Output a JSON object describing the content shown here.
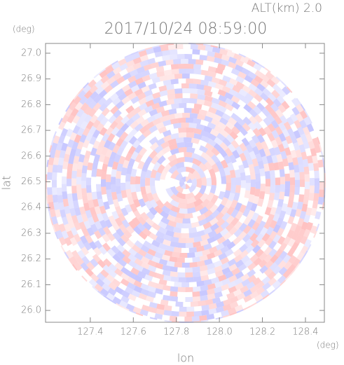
{
  "chart_data": {
    "type": "radar-image",
    "title": "2017/10/24 08:59:00",
    "annotation": "ALT(km) 2.0",
    "xlabel": "lon",
    "ylabel": "lat",
    "xunit": "(deg)",
    "yunit": "(deg)",
    "xlim": [
      127.192,
      128.488
    ],
    "xticks": [
      127.4,
      127.6,
      127.8,
      {
        "value": 128.0,
        "label": "128.0"
      },
      128.2,
      128.4
    ],
    "ylim": [
      25.954,
      27.038
    ],
    "yticks": [
      {
        "value": 26.0,
        "label": "26.0"
      },
      26.1,
      26.2,
      26.3,
      26.4,
      26.5,
      26.6,
      26.7,
      26.8,
      26.9,
      {
        "value": 27.0,
        "label": "27.0"
      }
    ]
  }
}
